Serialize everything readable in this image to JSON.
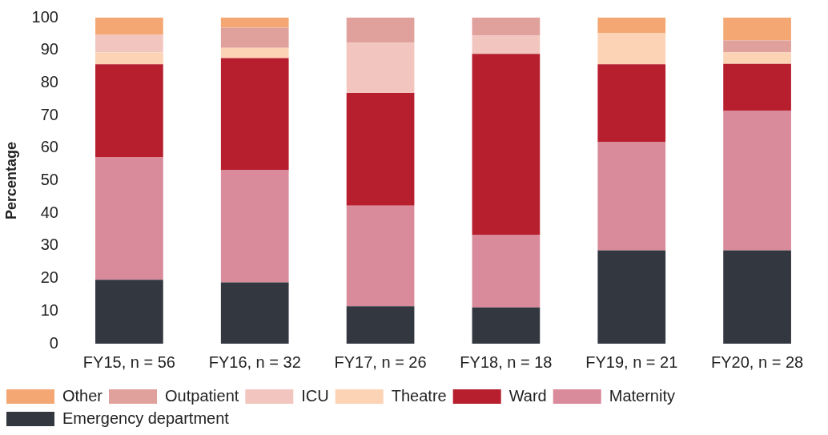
{
  "chart_data": {
    "type": "bar",
    "stacked": true,
    "ylabel": "Percentage",
    "categories": [
      "FY15, n = 56",
      "FY16, n = 32",
      "FY17, n = 26",
      "FY18, n = 18",
      "FY19, n = 21",
      "FY20, n = 28"
    ],
    "series": [
      {
        "name": "Emergency department",
        "color": "#333740",
        "values": [
          19.6,
          18.8,
          11.5,
          11.1,
          28.6,
          28.6
        ]
      },
      {
        "name": "Maternity",
        "color": "#d98a9b",
        "values": [
          37.5,
          34.4,
          30.8,
          22.2,
          33.3,
          42.9
        ]
      },
      {
        "name": "Ward",
        "color": "#b71f2e",
        "values": [
          28.6,
          34.4,
          34.6,
          55.6,
          23.8,
          14.3
        ]
      },
      {
        "name": "Theatre",
        "color": "#fcd3b5",
        "values": [
          3.6,
          3.1,
          null,
          null,
          9.5,
          3.6
        ]
      },
      {
        "name": "ICU",
        "color": "#f2c6bf",
        "values": [
          5.4,
          null,
          15.4,
          5.6,
          null,
          null
        ]
      },
      {
        "name": "Outpatient",
        "color": "#e0a09b",
        "values": [
          null,
          6.2,
          7.7,
          5.6,
          null,
          3.6
        ]
      },
      {
        "name": "Other",
        "color": "#f4a772",
        "values": [
          5.4,
          3.1,
          null,
          null,
          4.8,
          7.1
        ]
      }
    ],
    "ylim": [
      0,
      100
    ],
    "yticks": [
      0,
      10,
      20,
      30,
      40,
      50,
      60,
      70,
      80,
      90,
      100
    ],
    "grid": false,
    "legend": "bottom"
  }
}
